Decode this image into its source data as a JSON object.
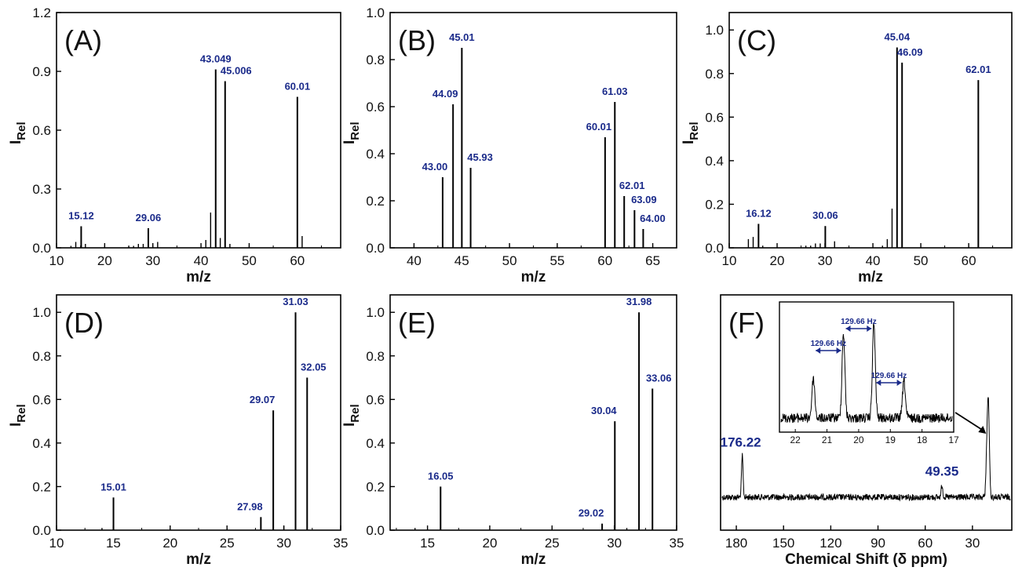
{
  "colors": {
    "axis": "#000000",
    "label": "#1a2a8a",
    "peak": "#000000"
  },
  "chart_data": [
    {
      "id": "A",
      "type": "bar",
      "panel_label": "(A)",
      "xlabel": "m/z",
      "ylabel": "I",
      "ylabel_sub": "Rel",
      "xlim": [
        10,
        69
      ],
      "ylim": [
        0,
        1.2
      ],
      "xticks": [
        10,
        20,
        30,
        40,
        50,
        60
      ],
      "yticks": [
        0.0,
        0.3,
        0.6,
        0.9,
        1.2
      ],
      "ytick_labels": [
        "0.0",
        "0.3",
        "0.6",
        "0.9",
        "1.2"
      ],
      "peaks": [
        {
          "x": 13,
          "y": 0.01
        },
        {
          "x": 14,
          "y": 0.03
        },
        {
          "x": 15.12,
          "y": 0.11,
          "label": "15.12"
        },
        {
          "x": 16,
          "y": 0.02
        },
        {
          "x": 25,
          "y": 0.01
        },
        {
          "x": 26,
          "y": 0.01
        },
        {
          "x": 27,
          "y": 0.02
        },
        {
          "x": 28,
          "y": 0.02
        },
        {
          "x": 29.06,
          "y": 0.1,
          "label": "29.06"
        },
        {
          "x": 31,
          "y": 0.03
        },
        {
          "x": 41,
          "y": 0.04
        },
        {
          "x": 42,
          "y": 0.18
        },
        {
          "x": 43.049,
          "y": 0.91,
          "label": "43.049"
        },
        {
          "x": 44,
          "y": 0.05
        },
        {
          "x": 45.006,
          "y": 0.85,
          "label": "45.006"
        },
        {
          "x": 46,
          "y": 0.02
        },
        {
          "x": 60.01,
          "y": 0.77,
          "label": "60.01"
        },
        {
          "x": 61,
          "y": 0.06
        }
      ]
    },
    {
      "id": "B",
      "type": "bar",
      "panel_label": "(B)",
      "xlabel": "m/z",
      "ylabel": "I",
      "ylabel_sub": "Rel",
      "xlim": [
        37.5,
        67.5
      ],
      "ylim": [
        0,
        1.0
      ],
      "xticks": [
        40,
        45,
        50,
        55,
        60,
        65
      ],
      "yticks": [
        0.0,
        0.2,
        0.4,
        0.6,
        0.8,
        1.0
      ],
      "ytick_labels": [
        "0.0",
        "0.2",
        "0.4",
        "0.6",
        "0.8",
        "1.0"
      ],
      "peaks": [
        {
          "x": 43.0,
          "y": 0.3,
          "label": "43.00"
        },
        {
          "x": 44.09,
          "y": 0.61,
          "label": "44.09"
        },
        {
          "x": 45.01,
          "y": 0.85,
          "label": "45.01"
        },
        {
          "x": 45.93,
          "y": 0.34,
          "label": "45.93"
        },
        {
          "x": 60.01,
          "y": 0.47,
          "label": "60.01"
        },
        {
          "x": 61.03,
          "y": 0.62,
          "label": "61.03"
        },
        {
          "x": 62.01,
          "y": 0.22,
          "label": "62.01"
        },
        {
          "x": 63.09,
          "y": 0.16,
          "label": "63.09"
        },
        {
          "x": 64.0,
          "y": 0.08,
          "label": "64.00"
        }
      ]
    },
    {
      "id": "C",
      "type": "bar",
      "panel_label": "(C)",
      "xlabel": "m/z",
      "ylabel": "I",
      "ylabel_sub": "Rel",
      "xlim": [
        10,
        69
      ],
      "ylim": [
        0,
        1.08
      ],
      "xticks": [
        10,
        20,
        30,
        40,
        50,
        60
      ],
      "yticks": [
        0.0,
        0.2,
        0.4,
        0.6,
        0.8,
        1.0
      ],
      "ytick_labels": [
        "0.0",
        "0.2",
        "0.4",
        "0.6",
        "0.8",
        "1.0"
      ],
      "peaks": [
        {
          "x": 14,
          "y": 0.04
        },
        {
          "x": 15,
          "y": 0.05
        },
        {
          "x": 16.12,
          "y": 0.11,
          "label": "16.12"
        },
        {
          "x": 17,
          "y": 0.01
        },
        {
          "x": 26,
          "y": 0.01
        },
        {
          "x": 27,
          "y": 0.01
        },
        {
          "x": 28,
          "y": 0.02
        },
        {
          "x": 29,
          "y": 0.02
        },
        {
          "x": 30.06,
          "y": 0.1,
          "label": "30.06"
        },
        {
          "x": 32,
          "y": 0.03
        },
        {
          "x": 42,
          "y": 0.01
        },
        {
          "x": 43,
          "y": 0.04
        },
        {
          "x": 44,
          "y": 0.18
        },
        {
          "x": 45.04,
          "y": 0.92,
          "label": "45.04"
        },
        {
          "x": 46.09,
          "y": 0.85,
          "label": "46.09"
        },
        {
          "x": 62.01,
          "y": 0.77,
          "label": "62.01"
        }
      ]
    },
    {
      "id": "D",
      "type": "bar",
      "panel_label": "(D)",
      "xlabel": "m/z",
      "ylabel": "I",
      "ylabel_sub": "Rel",
      "xlim": [
        10,
        35
      ],
      "ylim": [
        0,
        1.08
      ],
      "xticks": [
        10,
        15,
        20,
        25,
        30,
        35
      ],
      "yticks": [
        0.0,
        0.2,
        0.4,
        0.6,
        0.8,
        1.0
      ],
      "ytick_labels": [
        "0.0",
        "0.2",
        "0.4",
        "0.6",
        "0.8",
        "1.0"
      ],
      "peaks": [
        {
          "x": 14,
          "y": 0.01
        },
        {
          "x": 15.01,
          "y": 0.15,
          "label": "15.01"
        },
        {
          "x": 27.98,
          "y": 0.06,
          "label": "27.98"
        },
        {
          "x": 29.07,
          "y": 0.55,
          "label": "29.07"
        },
        {
          "x": 30,
          "y": 0.02
        },
        {
          "x": 31.03,
          "y": 1.0,
          "label": "31.03"
        },
        {
          "x": 32.05,
          "y": 0.7,
          "label": "32.05"
        }
      ]
    },
    {
      "id": "E",
      "type": "bar",
      "panel_label": "(E)",
      "xlabel": "m/z",
      "ylabel": "I",
      "ylabel_sub": "Rel",
      "xlim": [
        12,
        35
      ],
      "ylim": [
        0,
        1.08
      ],
      "xticks": [
        15,
        20,
        25,
        30,
        35
      ],
      "yticks": [
        0.0,
        0.2,
        0.4,
        0.6,
        0.8,
        1.0
      ],
      "ytick_labels": [
        "0.0",
        "0.2",
        "0.4",
        "0.6",
        "0.8",
        "1.0"
      ],
      "peaks": [
        {
          "x": 14,
          "y": 0.01
        },
        {
          "x": 16.05,
          "y": 0.2,
          "label": "16.05"
        },
        {
          "x": 29.02,
          "y": 0.03,
          "label": "29.02"
        },
        {
          "x": 30.04,
          "y": 0.5,
          "label": "30.04"
        },
        {
          "x": 31,
          "y": 0.01
        },
        {
          "x": 31.98,
          "y": 1.0,
          "label": "31.98"
        },
        {
          "x": 33.06,
          "y": 0.65,
          "label": "33.06"
        }
      ]
    },
    {
      "id": "F",
      "type": "line",
      "panel_label": "(F)",
      "xlabel": "Chemical Shift (δ ppm)",
      "xlim": [
        190,
        5
      ],
      "xreversed": true,
      "xticks": [
        180,
        150,
        120,
        90,
        60,
        30
      ],
      "peaks": [
        {
          "x": 176.22,
          "height": 0.75,
          "label": "176.22"
        },
        {
          "x": 49.35,
          "height": 0.22,
          "label": "49.35"
        },
        {
          "x": 21.1,
          "height": 0.55
        },
        {
          "x": 20.3,
          "height": 1.0
        },
        {
          "x": 19.8,
          "height": 0.85
        },
        {
          "x": 19.3,
          "height": 0.45
        }
      ],
      "inset": {
        "xlim": [
          22.5,
          17
        ],
        "xticks": [
          22,
          21,
          20,
          19,
          18,
          17
        ],
        "peaks": [
          {
            "x": 21.43,
            "height": 0.42
          },
          {
            "x": 20.48,
            "height": 0.9
          },
          {
            "x": 19.52,
            "height": 1.0
          },
          {
            "x": 18.57,
            "height": 0.4
          }
        ],
        "annotations": [
          "129.66 Hz",
          "129.66 Hz",
          "129.66 Hz"
        ]
      }
    }
  ]
}
